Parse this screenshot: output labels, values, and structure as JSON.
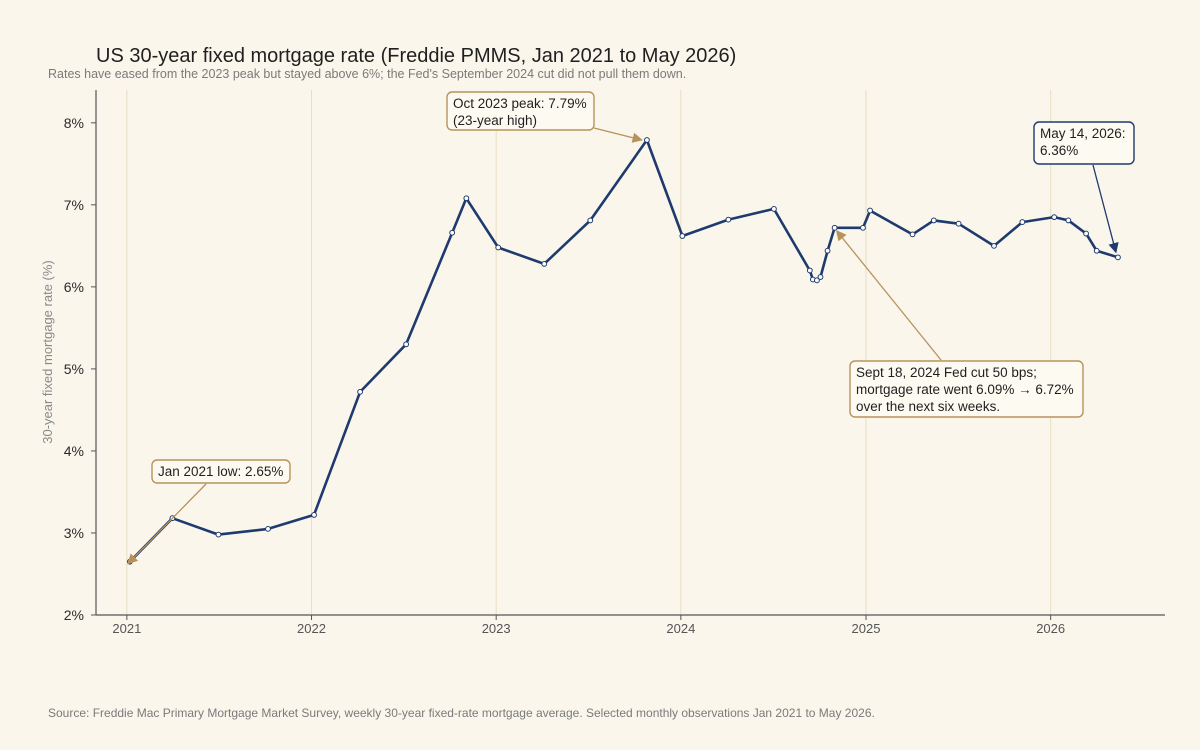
{
  "header": {
    "title": "US 30-year fixed mortgage rate (Freddie PMMS, Jan 2021 to May 2026)",
    "subtitle": "Rates have eased from the 2023 peak but stayed above 6%; the Fed's September 2024 cut did not pull them down."
  },
  "footer": {
    "source": "Source: Freddie Mac Primary Mortgage Market Survey, weekly 30-year fixed-rate mortgage average. Selected monthly observations Jan 2021 to May 2026."
  },
  "chart_data": {
    "type": "line",
    "title": "US 30-year fixed mortgage rate (Freddie PMMS, Jan 2021 to May 2026)",
    "subtitle": "Rates have eased from the 2023 peak but stayed above 6%; the Fed's September 2024 cut did not pull them down.",
    "xlabel": "",
    "ylabel": "30-year fixed mortgage rate (%)",
    "xlim": [
      "2020-11-01",
      "2026-08-15"
    ],
    "ylim": [
      2,
      8.4
    ],
    "x_ticks": [
      {
        "date": "2021-01-01",
        "label": "2021"
      },
      {
        "date": "2022-01-01",
        "label": "2022"
      },
      {
        "date": "2023-01-01",
        "label": "2023"
      },
      {
        "date": "2024-01-01",
        "label": "2024"
      },
      {
        "date": "2025-01-01",
        "label": "2025"
      },
      {
        "date": "2026-01-01",
        "label": "2026"
      }
    ],
    "y_ticks": [
      {
        "value": 2,
        "label": "2%"
      },
      {
        "value": 3,
        "label": "3%"
      },
      {
        "value": 4,
        "label": "4%"
      },
      {
        "value": 5,
        "label": "5%"
      },
      {
        "value": 6,
        "label": "6%"
      },
      {
        "value": 7,
        "label": "7%"
      },
      {
        "value": 8,
        "label": "8%"
      }
    ],
    "grid": "vertical lines at year ticks",
    "colors": {
      "line": "#1f3a6e",
      "grid": "#e8dfc0",
      "axis": "#555555",
      "annotation_gold": "#b8925a",
      "annotation_navy": "#1f3a6e",
      "background": "#faf6ec"
    },
    "series": [
      {
        "points": [
          {
            "x": "2021-01-07",
            "y": 2.65
          },
          {
            "x": "2021-04-01",
            "y": 3.18
          },
          {
            "x": "2021-07-01",
            "y": 2.98
          },
          {
            "x": "2021-10-07",
            "y": 3.05
          },
          {
            "x": "2022-01-06",
            "y": 3.22
          },
          {
            "x": "2022-04-07",
            "y": 4.72
          },
          {
            "x": "2022-07-07",
            "y": 5.3
          },
          {
            "x": "2022-10-06",
            "y": 6.66
          },
          {
            "x": "2022-11-03",
            "y": 7.08
          },
          {
            "x": "2023-01-05",
            "y": 6.48
          },
          {
            "x": "2023-04-06",
            "y": 6.28
          },
          {
            "x": "2023-07-06",
            "y": 6.81
          },
          {
            "x": "2023-10-26",
            "y": 7.79
          },
          {
            "x": "2024-01-04",
            "y": 6.62
          },
          {
            "x": "2024-04-04",
            "y": 6.82
          },
          {
            "x": "2024-07-03",
            "y": 6.95
          },
          {
            "x": "2024-09-12",
            "y": 6.2
          },
          {
            "x": "2024-09-18",
            "y": 6.09
          },
          {
            "x": "2024-09-26",
            "y": 6.08
          },
          {
            "x": "2024-10-03",
            "y": 6.12
          },
          {
            "x": "2024-10-17",
            "y": 6.44
          },
          {
            "x": "2024-10-31",
            "y": 6.72
          },
          {
            "x": "2024-12-26",
            "y": 6.72
          },
          {
            "x": "2025-01-09",
            "y": 6.93
          },
          {
            "x": "2025-04-03",
            "y": 6.64
          },
          {
            "x": "2025-05-15",
            "y": 6.81
          },
          {
            "x": "2025-07-03",
            "y": 6.77
          },
          {
            "x": "2025-09-11",
            "y": 6.5
          },
          {
            "x": "2025-11-06",
            "y": 6.79
          },
          {
            "x": "2026-01-08",
            "y": 6.85
          },
          {
            "x": "2026-02-05",
            "y": 6.81
          },
          {
            "x": "2026-03-12",
            "y": 6.65
          },
          {
            "x": "2026-04-02",
            "y": 6.44
          },
          {
            "x": "2026-05-14",
            "y": 6.36
          }
        ]
      }
    ],
    "annotations": [
      {
        "key": "low",
        "lines": [
          "Jan 2021 low: 2.65%"
        ],
        "target": {
          "x": "2021-01-07",
          "y": 2.65
        },
        "style": "gold"
      },
      {
        "key": "peak",
        "lines": [
          "Oct 2023 peak: 7.79%",
          "(23-year high)"
        ],
        "target": {
          "x": "2023-10-26",
          "y": 7.79
        },
        "style": "gold"
      },
      {
        "key": "cut",
        "lines": [
          "Sept 18, 2024 Fed cut 50 bps;",
          "mortgage rate went 6.09% → 6.72%",
          "over the next six weeks."
        ],
        "target": {
          "x": "2024-10-31",
          "y": 6.72
        },
        "style": "gold"
      },
      {
        "key": "latest",
        "lines": [
          "May 14, 2026:",
          "6.36%"
        ],
        "target": {
          "x": "2026-05-14",
          "y": 6.36
        },
        "style": "navy"
      }
    ]
  }
}
